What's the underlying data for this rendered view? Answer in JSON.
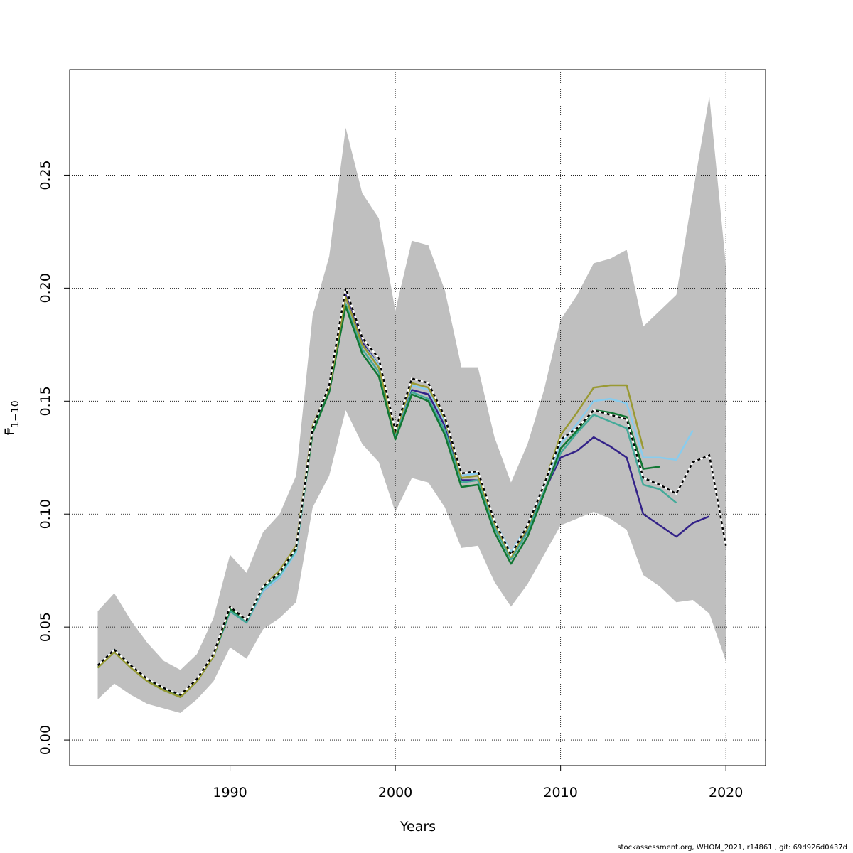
{
  "chart_data": {
    "type": "line",
    "xlabel": "Years",
    "ylabel": "F",
    "ylabel_sub": "1−10",
    "xlim": [
      1980.3,
      2022.4
    ],
    "ylim": [
      -0.0113,
      0.2967
    ],
    "x_ticks": [
      "1990",
      "2000",
      "2010",
      "2020"
    ],
    "y_ticks": [
      "0.00",
      "0.05",
      "0.10",
      "0.15",
      "0.20",
      "0.25"
    ],
    "grid": true,
    "confidence_band": {
      "fill": "#bfbfbf",
      "years": [
        1982,
        1983,
        1984,
        1985,
        1986,
        1987,
        1988,
        1989,
        1990,
        1991,
        1992,
        1993,
        1994,
        1995,
        1996,
        1997,
        1998,
        1999,
        2000,
        2001,
        2002,
        2003,
        2004,
        2005,
        2006,
        2007,
        2008,
        2009,
        2010,
        2011,
        2012,
        2013,
        2014,
        2015,
        2016,
        2017,
        2018,
        2019,
        2020
      ],
      "lower": [
        0.018,
        0.025,
        0.02,
        0.016,
        0.014,
        0.012,
        0.018,
        0.026,
        0.041,
        0.036,
        0.049,
        0.054,
        0.061,
        0.103,
        0.117,
        0.146,
        0.131,
        0.123,
        0.101,
        0.116,
        0.114,
        0.103,
        0.085,
        0.086,
        0.07,
        0.059,
        0.069,
        0.082,
        0.095,
        0.098,
        0.101,
        0.098,
        0.093,
        0.073,
        0.068,
        0.061,
        0.062,
        0.056,
        0.035
      ],
      "upper": [
        0.057,
        0.065,
        0.053,
        0.043,
        0.035,
        0.031,
        0.038,
        0.054,
        0.082,
        0.074,
        0.092,
        0.1,
        0.117,
        0.188,
        0.214,
        0.271,
        0.242,
        0.231,
        0.19,
        0.221,
        0.219,
        0.199,
        0.165,
        0.165,
        0.134,
        0.114,
        0.131,
        0.155,
        0.186,
        0.197,
        0.211,
        0.213,
        0.217,
        0.183,
        0.19,
        0.197,
        0.242,
        0.285,
        0.21
      ]
    },
    "series": [
      {
        "color": "#000000",
        "dashed": true,
        "start": 1982,
        "values": [
          0.033,
          0.04,
          0.033,
          0.027,
          0.023,
          0.02,
          0.027,
          0.038,
          0.059,
          0.053,
          0.068,
          0.074,
          0.085,
          0.138,
          0.157,
          0.2,
          0.178,
          0.169,
          0.137,
          0.16,
          0.158,
          0.143,
          0.118,
          0.119,
          0.097,
          0.082,
          0.095,
          0.113,
          0.133,
          0.138,
          0.146,
          0.144,
          0.142,
          0.116,
          0.113,
          0.109,
          0.123,
          0.126,
          0.086
        ]
      },
      {
        "color": "#332288",
        "start": 1982,
        "values": [
          0.033,
          0.04,
          0.033,
          0.026,
          0.023,
          0.02,
          0.026,
          0.037,
          0.057,
          0.052,
          0.066,
          0.072,
          0.084,
          0.137,
          0.155,
          0.197,
          0.176,
          0.166,
          0.135,
          0.155,
          0.153,
          0.139,
          0.115,
          0.115,
          0.096,
          0.082,
          0.093,
          0.11,
          0.125,
          0.128,
          0.134,
          0.13,
          0.125,
          0.1,
          0.095,
          0.09,
          0.096,
          0.099
        ]
      },
      {
        "color": "#88ccee",
        "start": 1982,
        "values": [
          0.033,
          0.04,
          0.033,
          0.026,
          0.023,
          0.02,
          0.026,
          0.037,
          0.057,
          0.052,
          0.066,
          0.072,
          0.083,
          0.137,
          0.155,
          0.196,
          0.175,
          0.166,
          0.136,
          0.157,
          0.155,
          0.141,
          0.117,
          0.118,
          0.097,
          0.083,
          0.095,
          0.113,
          0.131,
          0.14,
          0.15,
          0.151,
          0.149,
          0.125,
          0.125,
          0.124,
          0.137
        ]
      },
      {
        "color": "#44aa99",
        "start": 1982,
        "values": [
          0.032,
          0.039,
          0.032,
          0.026,
          0.022,
          0.019,
          0.026,
          0.037,
          0.057,
          0.052,
          0.067,
          0.073,
          0.084,
          0.137,
          0.154,
          0.193,
          0.173,
          0.163,
          0.134,
          0.154,
          0.151,
          0.137,
          0.114,
          0.115,
          0.094,
          0.08,
          0.092,
          0.11,
          0.127,
          0.136,
          0.144,
          0.141,
          0.138,
          0.113,
          0.111,
          0.105
        ]
      },
      {
        "color": "#117733",
        "start": 1982,
        "values": [
          0.032,
          0.04,
          0.033,
          0.026,
          0.023,
          0.019,
          0.026,
          0.037,
          0.058,
          0.053,
          0.068,
          0.074,
          0.085,
          0.136,
          0.154,
          0.192,
          0.171,
          0.161,
          0.133,
          0.153,
          0.15,
          0.135,
          0.112,
          0.113,
          0.092,
          0.078,
          0.09,
          0.109,
          0.129,
          0.137,
          0.146,
          0.145,
          0.143,
          0.12,
          0.121
        ]
      },
      {
        "color": "#999933",
        "start": 1982,
        "values": [
          0.032,
          0.039,
          0.032,
          0.026,
          0.022,
          0.019,
          0.026,
          0.037,
          0.059,
          0.053,
          0.068,
          0.075,
          0.086,
          0.139,
          0.156,
          0.196,
          0.175,
          0.165,
          0.136,
          0.158,
          0.156,
          0.142,
          0.116,
          0.117,
          0.096,
          0.081,
          0.094,
          0.113,
          0.135,
          0.145,
          0.156,
          0.157,
          0.157,
          0.129
        ]
      }
    ]
  },
  "footer_text": "stockassessment.org, WHOM_2021, r14861 , git: 69d926d0437d"
}
